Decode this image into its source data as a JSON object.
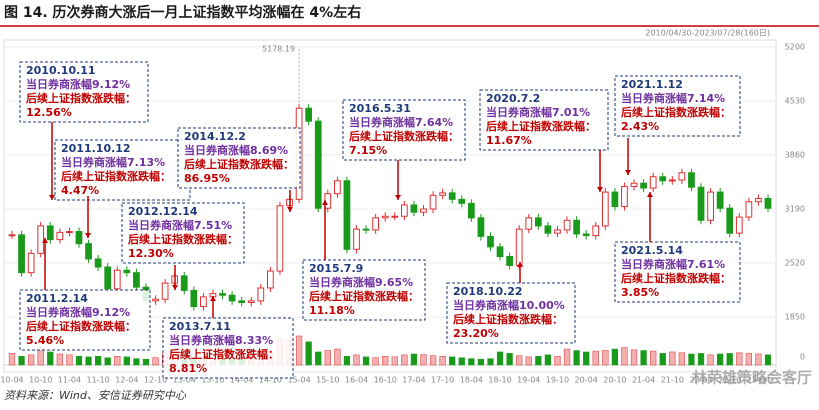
{
  "chart_data": {
    "type": "candlestick",
    "title": "图 14. 历次券商大涨后一月上证指数平均涨幅在 4%左右",
    "date_range": "2010/04/30-2023/07/28(160日)",
    "source": "资料来源：Wind、安信证券研究中心",
    "watermark": "林荣雄策略会客厅",
    "up_color": "#e03030",
    "down_color": "#1a9a1a",
    "categories": [
      "10-04",
      null,
      null,
      "10-10",
      null,
      null,
      "11-04",
      null,
      null,
      "11-10",
      null,
      null,
      "12-04",
      null,
      null,
      "12-10",
      null,
      null,
      "13-04",
      null,
      null,
      "13-10",
      null,
      null,
      "14-04",
      null,
      null,
      "14-10",
      null,
      null,
      "15-04",
      null,
      null,
      "15-10",
      null,
      null,
      "16-04",
      null,
      null,
      "16-10",
      null,
      null,
      "17-04",
      null,
      null,
      "17-10",
      null,
      null,
      "18-04",
      null,
      null,
      "18-10",
      null,
      null,
      "19-04",
      null,
      null,
      "19-10",
      null,
      null,
      "20-04",
      null,
      null,
      "20-10",
      null,
      null,
      "21-04",
      null,
      null,
      "21-10",
      null,
      null,
      "22-04",
      null,
      null,
      "22-10",
      null,
      null,
      "23-04",
      null
    ],
    "close": [
      2870,
      2400,
      2640,
      2980,
      2810,
      2900,
      2910,
      2760,
      2570,
      2470,
      2200,
      2430,
      2400,
      2220,
      2050,
      2070,
      2270,
      2360,
      2180,
      1980,
      2100,
      2140,
      2120,
      2050,
      2030,
      2050,
      2210,
      2420,
      3230,
      3310,
      4440,
      4280,
      3200,
      3380,
      3540,
      2690,
      2940,
      2930,
      3080,
      3100,
      3100,
      3240,
      3150,
      3190,
      3360,
      3390,
      3310,
      3260,
      3080,
      2850,
      2720,
      2600,
      2490,
      2940,
      3080,
      2980,
      2890,
      2930,
      3050,
      2880,
      2860,
      2980,
      3400,
      3220,
      3470,
      3510,
      3450,
      3590,
      3540,
      3550,
      3640,
      3460,
      3050,
      3400,
      3200,
      2890,
      3090,
      3280,
      3320,
      3200
    ],
    "volume": [
      40,
      30,
      35,
      60,
      45,
      38,
      35,
      30,
      28,
      30,
      25,
      30,
      28,
      22,
      20,
      25,
      40,
      35,
      30,
      25,
      30,
      28,
      26,
      22,
      25,
      24,
      30,
      45,
      90,
      85,
      100,
      80,
      45,
      50,
      55,
      30,
      35,
      28,
      25,
      30,
      28,
      35,
      38,
      36,
      32,
      30,
      28,
      25,
      22,
      20,
      22,
      45,
      40,
      32,
      28,
      30,
      35,
      30,
      55,
      50,
      45,
      48,
      50,
      55,
      60,
      52,
      50,
      48,
      40,
      45,
      42,
      38,
      40,
      35,
      38,
      40,
      42,
      40,
      38,
      35
    ],
    "ylim": [
      1850,
      5200
    ],
    "yticks": [
      5200,
      4530,
      3860,
      3190,
      2520,
      1850
    ],
    "y2lim": [
      0,
      100
    ],
    "y2ticks": [
      0
    ],
    "max_label": 5178.19,
    "annotations": [
      {
        "date": "2010.10.11",
        "gain": "当日券商涨幅9.12%",
        "after_title": "后续上证指数涨跌幅：",
        "after": "12.56%"
      },
      {
        "date": "2011.10.12",
        "gain": "当日券商涨幅7.13%",
        "after_title": "后续上证指数涨跌幅：",
        "after": "4.47%"
      },
      {
        "date": "2011.2.14",
        "gain": "当日券商涨幅9.12%",
        "after_title": "后续上证指数涨跌幅：",
        "after": "5.46%"
      },
      {
        "date": "2012.12.14",
        "gain": "当日券商涨幅7.51%",
        "after_title": "后续上证指数涨跌幅：",
        "after": "12.30%"
      },
      {
        "date": "2014.12.2",
        "gain": "当日券商涨幅8.69%",
        "after_title": "后续上证指数涨跌幅：",
        "after": "86.95%"
      },
      {
        "date": "2013.7.11",
        "gain": "当日券商涨幅8.33%",
        "after_title": "后续上证指数涨跌幅：",
        "after": "8.81%"
      },
      {
        "date": "2015.7.9",
        "gain": "当日券商涨幅9.65%",
        "after_title": "后续上证指数涨跌幅：",
        "after": "11.18%"
      },
      {
        "date": "2016.5.31",
        "gain": "当日券商涨幅7.64%",
        "after_title": "后续上证指数涨跌幅：",
        "after": "7.15%"
      },
      {
        "date": "2018.10.22",
        "gain": "当日券商涨幅10.00%",
        "after_title": "后续上证指数涨跌幅：",
        "after": "23.20%"
      },
      {
        "date": "2020.7.2",
        "gain": "当日券商涨幅7.01%",
        "after_title": "后续上证指数涨跌幅：",
        "after": "11.67%"
      },
      {
        "date": "2021.1.12",
        "gain": "当日券商涨幅7.14%",
        "after_title": "后续上证指数涨跌幅：",
        "after": "2.43%"
      },
      {
        "date": "2021.5.14",
        "gain": "当日券商涨幅7.61%",
        "after_title": "后续上证指数涨跌幅：",
        "after": "3.85%"
      }
    ]
  }
}
